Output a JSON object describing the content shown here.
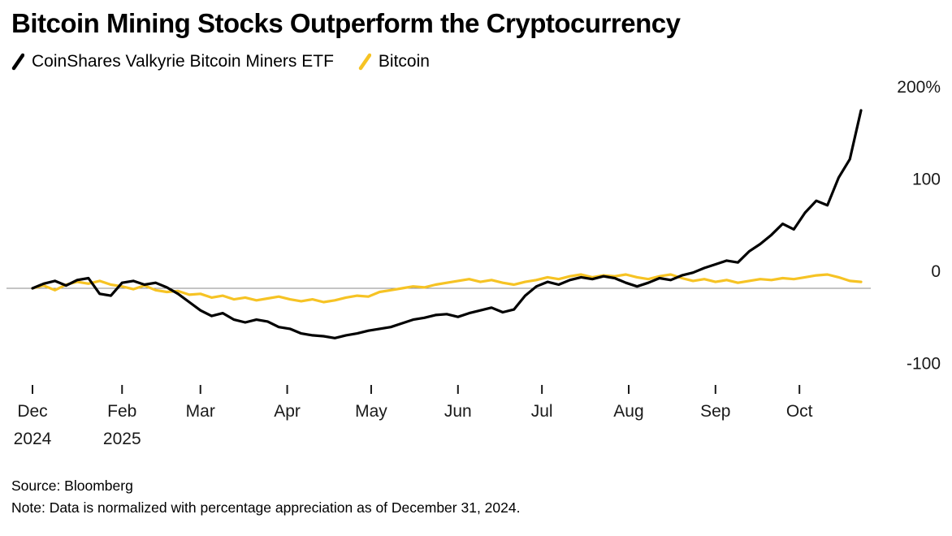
{
  "title": "Bitcoin Mining Stocks Outperform the Cryptocurrency",
  "footer": {
    "source": "Source: Bloomberg",
    "note": "Note: Data is normalized with percentage appreciation as of December 31, 2024."
  },
  "chart_data": {
    "type": "line",
    "title": "Bitcoin Mining Stocks Outperform the Cryptocurrency",
    "x_unit": "days since Dec 31, 2024",
    "ylabel": "% appreciation since Dec 31, 2024",
    "xlim": [
      0,
      296
    ],
    "ylim": [
      -130,
      220
    ],
    "grid": "zero-line-only",
    "legend_position": "top-left",
    "x_days": [
      0,
      4,
      8,
      12,
      16,
      20,
      24,
      28,
      32,
      36,
      40,
      44,
      48,
      52,
      56,
      60,
      64,
      68,
      72,
      76,
      80,
      84,
      88,
      92,
      96,
      100,
      104,
      108,
      112,
      116,
      120,
      124,
      128,
      132,
      136,
      140,
      144,
      148,
      152,
      156,
      160,
      164,
      168,
      172,
      176,
      180,
      184,
      188,
      192,
      196,
      200,
      204,
      208,
      212,
      216,
      220,
      224,
      228,
      232,
      236,
      240,
      244,
      248,
      252,
      256,
      260,
      264,
      268,
      272,
      276,
      280,
      284,
      288,
      292,
      296
    ],
    "series": [
      {
        "name": "CoinShares Valkyrie Bitcoin Miners ETF",
        "color": "#000000",
        "values": [
          0,
          5,
          8,
          3,
          9,
          11,
          -6,
          -8,
          6,
          8,
          4,
          6,
          1,
          -6,
          -15,
          -24,
          -30,
          -27,
          -34,
          -37,
          -34,
          -36,
          -42,
          -44,
          -49,
          -51,
          -52,
          -54,
          -51,
          -49,
          -46,
          -44,
          -42,
          -38,
          -34,
          -32,
          -29,
          -28,
          -31,
          -27,
          -24,
          -21,
          -26,
          -23,
          -8,
          2,
          7,
          4,
          9,
          12,
          10,
          13,
          11,
          6,
          2,
          6,
          11,
          9,
          14,
          17,
          22,
          26,
          30,
          28,
          40,
          48,
          58,
          70,
          64,
          82,
          95,
          90,
          120,
          140,
          193
        ]
      },
      {
        "name": "Bitcoin",
        "color": "#f6c324",
        "values": [
          0,
          3,
          -2,
          4,
          7,
          5,
          8,
          4,
          2,
          -1,
          3,
          -2,
          -4,
          -3,
          -7,
          -6,
          -10,
          -8,
          -12,
          -10,
          -13,
          -11,
          -9,
          -12,
          -14,
          -12,
          -15,
          -13,
          -10,
          -8,
          -9,
          -4,
          -2,
          0,
          2,
          1,
          4,
          6,
          8,
          10,
          7,
          9,
          6,
          4,
          7,
          9,
          12,
          10,
          13,
          15,
          12,
          14,
          13,
          15,
          12,
          10,
          13,
          15,
          11,
          8,
          10,
          7,
          9,
          6,
          8,
          10,
          9,
          11,
          10,
          12,
          14,
          15,
          12,
          8,
          7
        ]
      }
    ],
    "y_ticks": [
      {
        "value": 200,
        "label": "200%"
      },
      {
        "value": 100,
        "label": "100"
      },
      {
        "value": 0,
        "label": "0"
      },
      {
        "value": -100,
        "label": "-100"
      }
    ],
    "x_ticks": [
      {
        "day": 0,
        "label": "Dec",
        "sublabel": "2024"
      },
      {
        "day": 32,
        "label": "Feb",
        "sublabel": "2025"
      },
      {
        "day": 60,
        "label": "Mar"
      },
      {
        "day": 91,
        "label": "Apr"
      },
      {
        "day": 121,
        "label": "May"
      },
      {
        "day": 152,
        "label": "Jun"
      },
      {
        "day": 182,
        "label": "Jul"
      },
      {
        "day": 213,
        "label": "Aug"
      },
      {
        "day": 244,
        "label": "Sep"
      },
      {
        "day": 274,
        "label": "Oct"
      }
    ]
  }
}
